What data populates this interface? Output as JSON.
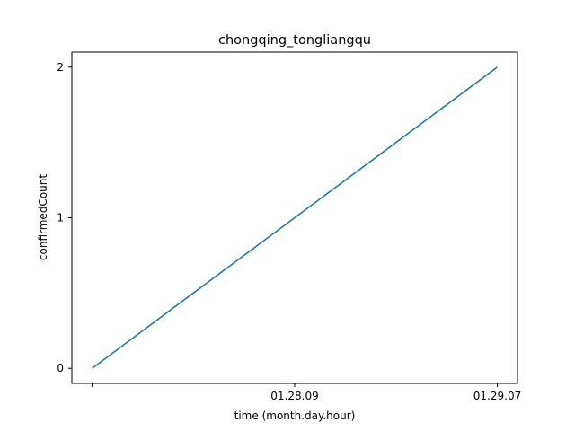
{
  "chart_data": {
    "type": "line",
    "title": "chongqing_tongliangqu",
    "xlabel": "time (month.day.hour)",
    "ylabel": "confirmedCount",
    "x_ticks": [
      "",
      "01.28.09",
      "01.29.07"
    ],
    "y_ticks": [
      0,
      1,
      2
    ],
    "ylim": [
      -0.1,
      2.1
    ],
    "grid": false,
    "series": [
      {
        "x": [
          0,
          1,
          2
        ],
        "values": [
          0,
          1,
          2
        ],
        "color": "#1f77b4"
      }
    ]
  }
}
